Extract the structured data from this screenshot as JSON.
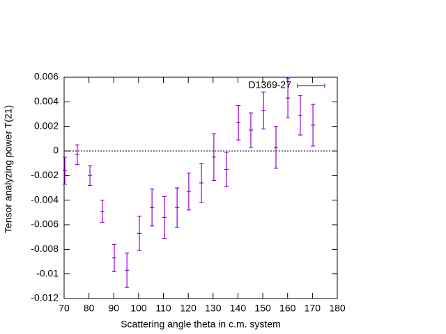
{
  "chart_data": {
    "type": "errorbar",
    "xlabel": "Scattering angle theta in c.m. system",
    "ylabel": "Tensor analyzing power T(21)",
    "xlim": [
      70,
      180
    ],
    "xticks": [
      70,
      80,
      90,
      100,
      110,
      120,
      130,
      140,
      150,
      160,
      170,
      180
    ],
    "ylim": [
      -0.012,
      0.006
    ],
    "yticks": [
      0.006,
      0.004,
      0.002,
      0,
      -0.002,
      -0.004,
      -0.006,
      -0.008,
      -0.01,
      -0.012
    ],
    "zero_line": true,
    "legend": "top right",
    "series": [
      {
        "name": "D1369-27",
        "color": "#9400d3",
        "x": [
          70.3,
          75.3,
          80.4,
          85.4,
          90.2,
          95.3,
          100.3,
          105.4,
          110.4,
          115.5,
          120.2,
          125.3,
          130.3,
          135.4,
          140.2,
          145.2,
          150.3,
          155.3,
          160.1,
          165.1,
          170.2
        ],
        "values": [
          -0.0016,
          -0.0003,
          -0.002,
          -0.0049,
          -0.0087,
          -0.0097,
          -0.0067,
          -0.0046,
          -0.0054,
          -0.0046,
          -0.0033,
          -0.0026,
          -0.0005,
          -0.0015,
          0.0023,
          0.0017,
          0.0033,
          0.0003,
          0.0043,
          0.0029,
          0.0021
        ],
        "errors": [
          0.0011,
          0.0008,
          0.0008,
          0.0009,
          0.0011,
          0.0014,
          0.0014,
          0.0015,
          0.0017,
          0.0016,
          0.0015,
          0.0016,
          0.0019,
          0.0014,
          0.0014,
          0.0014,
          0.0015,
          0.0017,
          0.0016,
          0.0016,
          0.0017
        ]
      }
    ]
  }
}
